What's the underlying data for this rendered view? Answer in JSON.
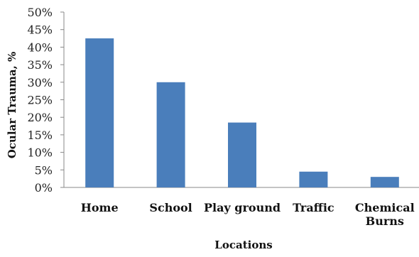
{
  "chart_data": {
    "type": "bar",
    "categories": [
      [
        "Home"
      ],
      [
        "School"
      ],
      [
        "Play ground"
      ],
      [
        "Traffic"
      ],
      [
        "Chemical",
        "Burns"
      ]
    ],
    "values": [
      42.5,
      30,
      18.5,
      4.5,
      3
    ],
    "ylim": [
      0,
      50
    ],
    "yticks": [
      "0%",
      "5%",
      "10%",
      "15%",
      "20%",
      "25%",
      "30%",
      "35%",
      "40%",
      "45%",
      "50%"
    ],
    "xlabel": "Locations",
    "ylabel": "Ocular Trauma, %",
    "bar_color": "#4a7ebb",
    "grid": false,
    "legend": "none"
  }
}
